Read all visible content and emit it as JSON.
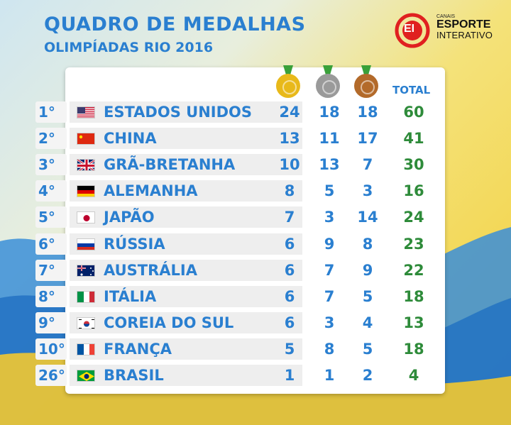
{
  "header": {
    "title": "QUADRO DE MEDALHAS",
    "subtitle": "OLIMPÍADAS RIO 2016"
  },
  "logo": {
    "canais": "CANAIS",
    "esporte": "ESPORTE",
    "interativo": "INTERATIVO",
    "mark": "EI"
  },
  "columns": {
    "gold_icon": "gold-medal-icon",
    "silver_icon": "silver-medal-icon",
    "bronze_icon": "bronze-medal-icon",
    "total": "TOTAL"
  },
  "colors": {
    "accent": "#2a7fd0",
    "total": "#2e8b3a",
    "gold": "#e8b91a",
    "silver": "#9a9a9a",
    "bronze": "#b36a2a",
    "logo_red": "#e02020"
  },
  "rows": [
    {
      "rank": "1°",
      "flag": "usa-flag-icon",
      "country": "ESTADOS UNIDOS",
      "gold": "24",
      "silver": "18",
      "bronze": "18",
      "total": "60"
    },
    {
      "rank": "2°",
      "flag": "china-flag-icon",
      "country": "CHINA",
      "gold": "13",
      "silver": "11",
      "bronze": "17",
      "total": "41"
    },
    {
      "rank": "3°",
      "flag": "uk-flag-icon",
      "country": "GRÃ-BRETANHA",
      "gold": "10",
      "silver": "13",
      "bronze": "7",
      "total": "30"
    },
    {
      "rank": "4°",
      "flag": "germany-flag-icon",
      "country": "ALEMANHA",
      "gold": "8",
      "silver": "5",
      "bronze": "3",
      "total": "16"
    },
    {
      "rank": "5°",
      "flag": "japan-flag-icon",
      "country": "JAPÃO",
      "gold": "7",
      "silver": "3",
      "bronze": "14",
      "total": "24"
    },
    {
      "rank": "6°",
      "flag": "russia-flag-icon",
      "country": "RÚSSIA",
      "gold": "6",
      "silver": "9",
      "bronze": "8",
      "total": "23"
    },
    {
      "rank": "7°",
      "flag": "australia-flag-icon",
      "country": "AUSTRÁLIA",
      "gold": "6",
      "silver": "7",
      "bronze": "9",
      "total": "22"
    },
    {
      "rank": "8°",
      "flag": "italy-flag-icon",
      "country": "ITÁLIA",
      "gold": "6",
      "silver": "7",
      "bronze": "5",
      "total": "18"
    },
    {
      "rank": "9°",
      "flag": "south-korea-flag-icon",
      "country": "COREIA DO SUL",
      "gold": "6",
      "silver": "3",
      "bronze": "4",
      "total": "13"
    },
    {
      "rank": "10°",
      "flag": "france-flag-icon",
      "country": "FRANÇA",
      "gold": "5",
      "silver": "8",
      "bronze": "5",
      "total": "18"
    },
    {
      "rank": "26°",
      "flag": "brazil-flag-icon",
      "country": "BRASIL",
      "gold": "1",
      "silver": "1",
      "bronze": "2",
      "total": "4"
    }
  ]
}
